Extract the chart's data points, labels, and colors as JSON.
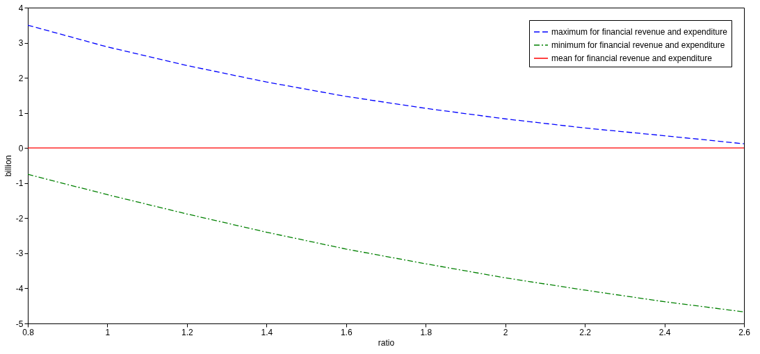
{
  "chart_data": {
    "type": "line",
    "xlabel": "ratio",
    "ylabel": "billion",
    "x": [
      0.8,
      1.0,
      1.2,
      1.4,
      1.6,
      1.8,
      2.0,
      2.2,
      2.4,
      2.6
    ],
    "series": [
      {
        "name": "maximum for financial revenue and expenditure",
        "color": "#0000ff",
        "line_style": "dashed",
        "values": [
          3.5,
          2.88,
          2.35,
          1.88,
          1.47,
          1.13,
          0.83,
          0.57,
          0.35,
          0.12
        ]
      },
      {
        "name": "minimum for financial revenue and expenditure",
        "color": "#008000",
        "line_style": "dashdot",
        "values": [
          -0.75,
          -1.33,
          -1.88,
          -2.4,
          -2.88,
          -3.3,
          -3.7,
          -4.05,
          -4.38,
          -4.67
        ]
      },
      {
        "name": "mean for financial revenue and expenditure",
        "color": "#ff0000",
        "line_style": "solid",
        "values": [
          0,
          0,
          0,
          0,
          0,
          0,
          0,
          0,
          0,
          0
        ]
      }
    ],
    "xlim": [
      0.8,
      2.6
    ],
    "xticks": [
      0.8,
      1,
      1.2,
      1.4,
      1.6,
      1.8,
      2,
      2.2,
      2.4,
      2.6
    ],
    "ylim": [
      -5,
      4
    ],
    "yticks": [
      -5,
      -4,
      -3,
      -2,
      -1,
      0,
      1,
      2,
      3,
      4
    ],
    "grid": false,
    "legend": "top right",
    "marker": "none"
  }
}
